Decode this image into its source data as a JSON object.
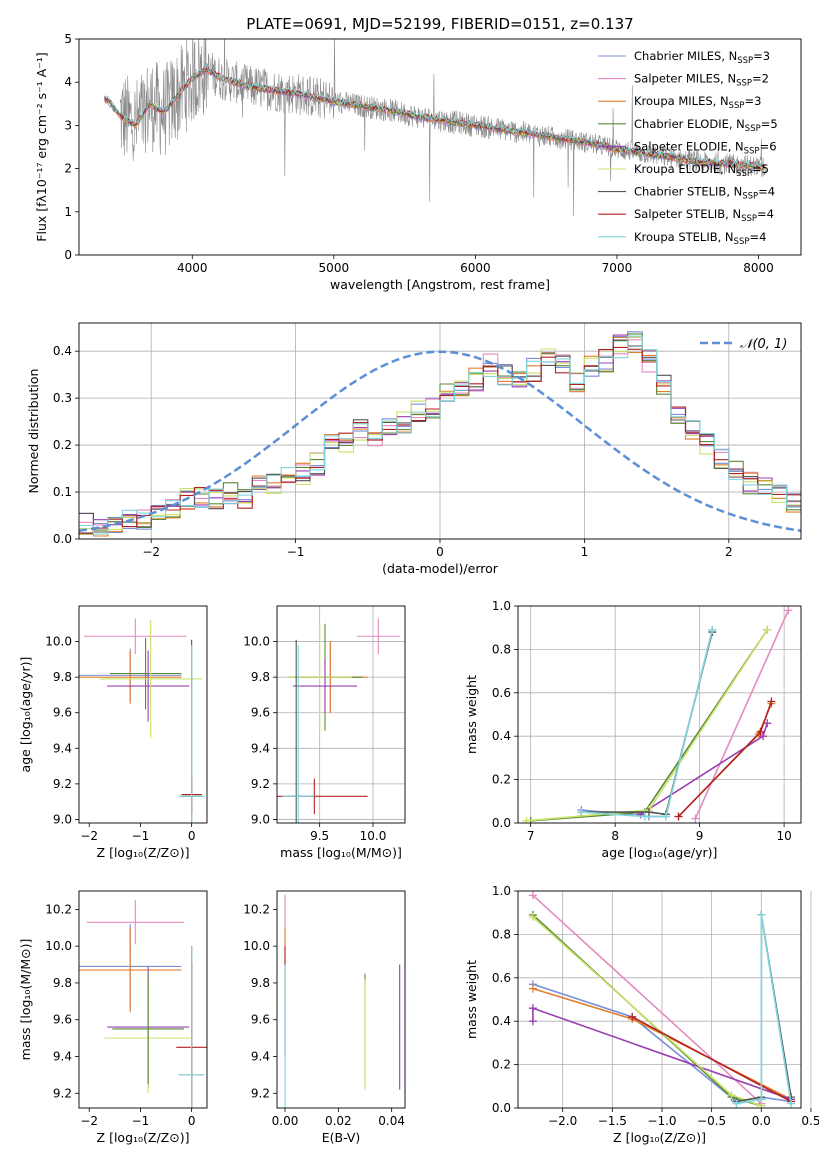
{
  "figure": {
    "title": "PLATE=0691, MJD=52199, FIBERID=0151, z=0.137"
  },
  "colors": {
    "Chabrier MILES": "#7b8fd6",
    "Salpeter MILES": "#e58ac0",
    "Kroupa MILES": "#e37f2c",
    "Chabrier ELODIE": "#5a8a3a",
    "Salpeter ELODIE": "#9a3fb0",
    "Kroupa ELODIE": "#c8e26a",
    "Chabrier STELIB": "#555555",
    "Salpeter STELIB": "#b22222",
    "Kroupa STELIB": "#7fd6dc",
    "observed": "#8a8a8a",
    "normal": "#5b8fd6"
  },
  "chart_data": [
    {
      "id": "spectrum",
      "type": "line",
      "xlabel": "wavelength [Angstrom, rest frame]",
      "ylabel": "Flux [fλ10⁻¹⁷ erg cm⁻² s⁻¹ A⁻¹]",
      "xlim": [
        3200,
        8300
      ],
      "ylim": [
        0,
        5
      ],
      "xticks": [
        "4000",
        "5000",
        "6000",
        "7000",
        "8000"
      ],
      "yticks": [
        "0",
        "1",
        "2",
        "3",
        "4",
        "5"
      ],
      "legend_position": "top-right",
      "legend": [
        {
          "name": "Chabrier MILES",
          "nssp": "3"
        },
        {
          "name": "Salpeter MILES",
          "nssp": "2"
        },
        {
          "name": "Kroupa MILES",
          "nssp": "3"
        },
        {
          "name": "Chabrier ELODIE",
          "nssp": "5"
        },
        {
          "name": "Salpeter ELODIE",
          "nssp": "6"
        },
        {
          "name": "Kroupa ELODIE",
          "nssp": "5"
        },
        {
          "name": "Chabrier STELIB",
          "nssp": "4"
        },
        {
          "name": "Salpeter STELIB",
          "nssp": "4"
        },
        {
          "name": "Kroupa STELIB",
          "nssp": "4"
        }
      ],
      "model_continuum": {
        "x": [
          3400,
          3500,
          3600,
          3700,
          3800,
          3900,
          4000,
          4100,
          4200,
          4400,
          4600,
          4800,
          5000,
          5200,
          5400,
          5600,
          5800,
          6000,
          6200,
          6400,
          6600,
          6800,
          7000,
          7200,
          7400,
          7600,
          7800,
          8000
        ],
        "y": [
          3.6,
          3.2,
          3.0,
          3.5,
          3.3,
          3.7,
          4.1,
          4.3,
          4.1,
          3.9,
          3.8,
          3.7,
          3.55,
          3.45,
          3.35,
          3.2,
          3.1,
          3.0,
          2.9,
          2.8,
          2.7,
          2.6,
          2.45,
          2.35,
          2.25,
          2.15,
          2.1,
          2.05
        ]
      }
    },
    {
      "id": "residuals",
      "type": "histogram",
      "xlabel": "(data-model)/error",
      "ylabel": "Normed distribution",
      "xlim": [
        -2.5,
        2.5
      ],
      "ylim": [
        0,
        0.46
      ],
      "xticks": [
        "−2",
        "−1",
        "0",
        "1",
        "2"
      ],
      "yticks": [
        "0.0",
        "0.1",
        "0.2",
        "0.3",
        "0.4"
      ],
      "legend_label": "𝒩(0, 1)",
      "legend_position": "top-right",
      "bin_width": 0.1,
      "bin_start": -2.5,
      "base_density": [
        0.03,
        0.03,
        0.035,
        0.04,
        0.04,
        0.05,
        0.06,
        0.085,
        0.09,
        0.085,
        0.1,
        0.09,
        0.11,
        0.12,
        0.14,
        0.14,
        0.16,
        0.2,
        0.21,
        0.23,
        0.22,
        0.24,
        0.25,
        0.27,
        0.28,
        0.31,
        0.33,
        0.34,
        0.37,
        0.35,
        0.34,
        0.36,
        0.38,
        0.37,
        0.33,
        0.37,
        0.38,
        0.41,
        0.42,
        0.38,
        0.33,
        0.27,
        0.23,
        0.2,
        0.17,
        0.15,
        0.12,
        0.11,
        0.09,
        0.08
      ]
    },
    {
      "id": "age-vs-Z",
      "type": "scatter",
      "xlabel": "Z [log₁₀(Z/Z⊙)]",
      "ylabel": "age  [log₁₀(age/yr)]",
      "xlim": [
        -2.2,
        0.3
      ],
      "ylim": [
        8.98,
        10.2
      ],
      "xticks": [
        "−2",
        "−1",
        "0"
      ],
      "yticks": [
        "9.0",
        "9.2",
        "9.4",
        "9.6",
        "9.8",
        "10.0"
      ]
    },
    {
      "id": "age-vs-mass",
      "type": "scatter",
      "xlabel": "mass [log₁₀(M/M⊙)]",
      "ylabel": "",
      "xlim": [
        9.1,
        10.3
      ],
      "ylim": [
        8.98,
        10.2
      ],
      "xticks": [
        "9.5",
        "10.0"
      ],
      "yticks": [
        "9.0",
        "9.2",
        "9.4",
        "9.6",
        "9.8",
        "10.0"
      ]
    },
    {
      "id": "weight-vs-age",
      "type": "line",
      "xlabel": "age  [log₁₀(age/yr)]",
      "ylabel": "mass weight",
      "xlim": [
        6.85,
        10.2
      ],
      "ylim": [
        0,
        1.0
      ],
      "xticks": [
        "7",
        "8",
        "9",
        "10"
      ],
      "yticks": [
        "0.0",
        "0.2",
        "0.4",
        "0.6",
        "0.8",
        "1.0"
      ],
      "series": [
        {
          "key": "Chabrier MILES",
          "x": [
            7.6,
            8.4,
            8.6,
            9.15
          ],
          "y": [
            0.06,
            0.03,
            0.03,
            0.89
          ]
        },
        {
          "key": "Salpeter MILES",
          "x": [
            8.95,
            10.05
          ],
          "y": [
            0.02,
            0.98
          ]
        },
        {
          "key": "Kroupa MILES",
          "x": [
            8.75,
            9.7,
            9.85
          ],
          "y": [
            0.03,
            0.41,
            0.55
          ]
        },
        {
          "key": "Chabrier ELODIE",
          "x": [
            7.0,
            8.35,
            9.8
          ],
          "y": [
            0.01,
            0.05,
            0.89
          ]
        },
        {
          "key": "Salpeter ELODIE",
          "x": [
            8.3,
            9.75,
            9.8
          ],
          "y": [
            0.04,
            0.4,
            0.46
          ]
        },
        {
          "key": "Kroupa ELODIE",
          "x": [
            6.95,
            8.4,
            9.8
          ],
          "y": [
            0.01,
            0.06,
            0.89
          ]
        },
        {
          "key": "Chabrier STELIB",
          "x": [
            7.6,
            8.4,
            8.6,
            9.15
          ],
          "y": [
            0.05,
            0.05,
            0.04,
            0.88
          ]
        },
        {
          "key": "Salpeter STELIB",
          "x": [
            8.75,
            9.72,
            9.85
          ],
          "y": [
            0.03,
            0.42,
            0.56
          ]
        },
        {
          "key": "Kroupa STELIB",
          "x": [
            7.6,
            8.35,
            8.6,
            9.15
          ],
          "y": [
            0.05,
            0.03,
            0.03,
            0.89
          ]
        }
      ]
    },
    {
      "id": "mass-vs-Z",
      "type": "scatter",
      "xlabel": "Z [log₁₀(Z/Z⊙)]",
      "ylabel": "mass [log₁₀(M/M⊙)]",
      "xlim": [
        -2.2,
        0.3
      ],
      "ylim": [
        9.12,
        10.3
      ],
      "xticks": [
        "−2",
        "−1",
        "0"
      ],
      "yticks": [
        "9.2",
        "9.4",
        "9.6",
        "9.8",
        "10.0",
        "10.2"
      ]
    },
    {
      "id": "mass-vs-ebv",
      "type": "scatter",
      "xlabel": "E(B-V)",
      "ylabel": "",
      "xlim": [
        -0.003,
        0.045
      ],
      "ylim": [
        9.12,
        10.3
      ],
      "xticks": [
        "0.00",
        "0.02",
        "0.04"
      ],
      "yticks": [
        "9.2",
        "9.4",
        "9.6",
        "9.8",
        "10.0",
        "10.2"
      ]
    },
    {
      "id": "weight-vs-Z",
      "type": "line",
      "xlabel": "Z [log₁₀(Z/Z⊙)]",
      "ylabel": "mass weight",
      "xlim": [
        -2.45,
        0.4
      ],
      "ylim": [
        0,
        1.0
      ],
      "xticks": [
        "−2.0",
        "−1.5",
        "−1.0",
        "−0.5",
        "0.0",
        "0.5"
      ],
      "yticks": [
        "0.0",
        "0.2",
        "0.4",
        "0.6",
        "0.8",
        "1.0"
      ],
      "series": [
        {
          "key": "Chabrier MILES",
          "x": [
            -2.3,
            -1.3,
            -0.25,
            0.0,
            0.3
          ],
          "y": [
            0.57,
            0.42,
            0.03,
            0.05,
            0.03
          ]
        },
        {
          "key": "Salpeter MILES",
          "x": [
            -2.3,
            0.0
          ],
          "y": [
            0.98,
            0.02
          ]
        },
        {
          "key": "Kroupa MILES",
          "x": [
            -2.3,
            -1.3,
            0.3
          ],
          "y": [
            0.55,
            0.41,
            0.04
          ]
        },
        {
          "key": "Chabrier ELODIE",
          "x": [
            -2.3,
            -0.3,
            0.0
          ],
          "y": [
            0.89,
            0.05,
            0.01
          ]
        },
        {
          "key": "Salpeter ELODIE",
          "x": [
            -2.3,
            -2.3,
            0.3
          ],
          "y": [
            0.4,
            0.46,
            0.04
          ]
        },
        {
          "key": "Kroupa ELODIE",
          "x": [
            -2.3,
            -0.3,
            0.0
          ],
          "y": [
            0.88,
            0.06,
            0.01
          ]
        },
        {
          "key": "Chabrier STELIB",
          "x": [
            -0.25,
            0.0,
            0.0,
            0.3
          ],
          "y": [
            0.03,
            0.05,
            0.89,
            0.05
          ]
        },
        {
          "key": "Salpeter STELIB",
          "x": [
            -1.3,
            0.3
          ],
          "y": [
            0.42,
            0.03
          ]
        },
        {
          "key": "Kroupa STELIB",
          "x": [
            -0.25,
            0.0,
            0.0,
            0.3
          ],
          "y": [
            0.02,
            0.04,
            0.89,
            0.02
          ]
        }
      ]
    }
  ]
}
